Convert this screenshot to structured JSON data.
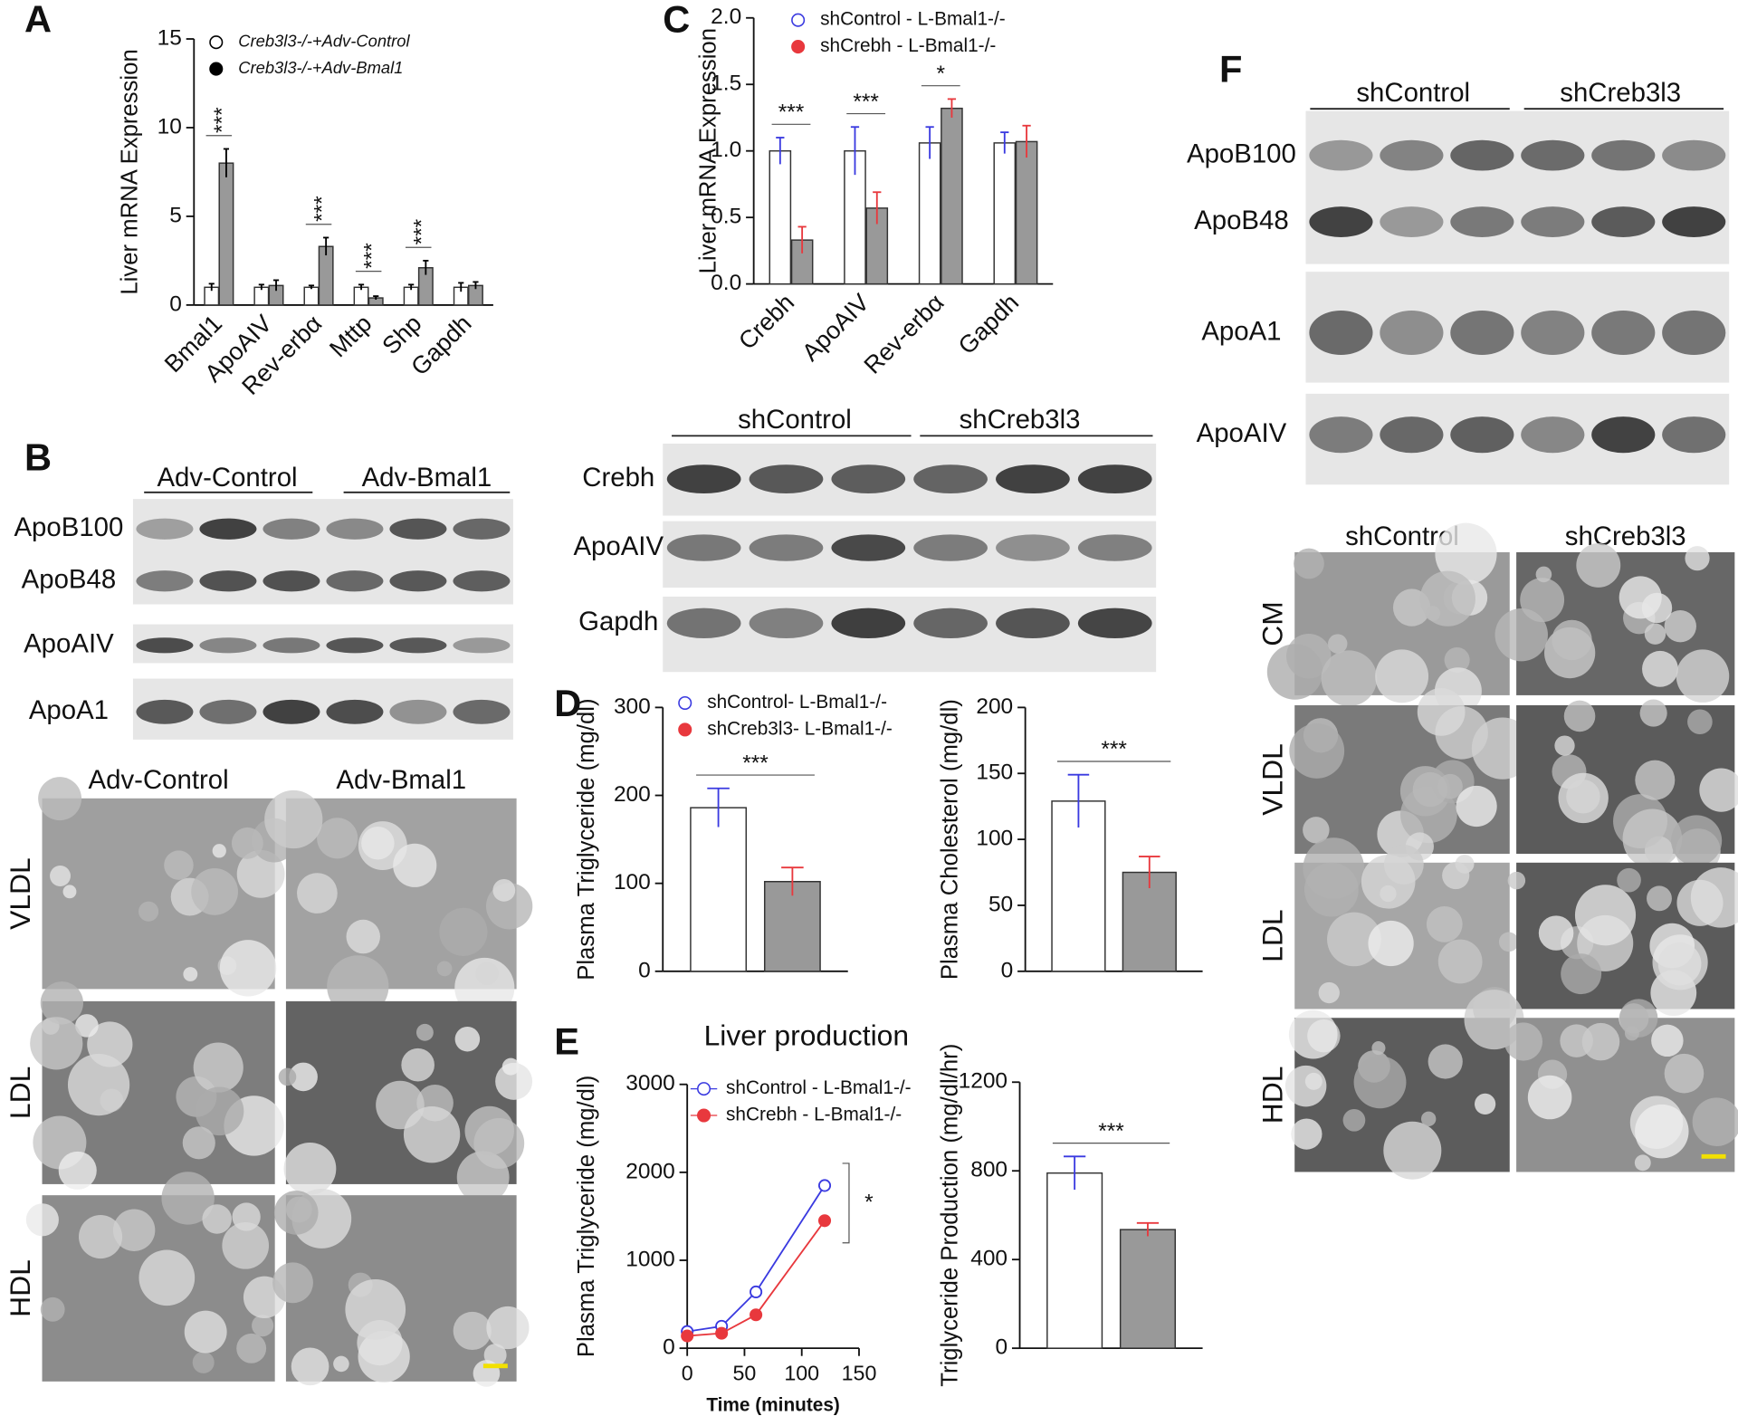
{
  "chart_data": [
    {
      "type": "bar",
      "ylabel": "Liver mRNA Expression",
      "categories": [
        "Bmal1",
        "ApoAIV",
        "Rev-erbα",
        "Mttp",
        "Shp",
        "Gapdh"
      ],
      "series": [
        {
          "name": "Creb3l3-/-+Adv-Control",
          "color": "#ffffff",
          "marker_color": "#000000",
          "marker_filled": false,
          "values": [
            1,
            1,
            1,
            1,
            1,
            1
          ],
          "errors": [
            0.2,
            0.15,
            0.1,
            0.15,
            0.15,
            0.25
          ]
        },
        {
          "name": "Creb3l3-/-+Adv-Bmal1",
          "color": "#999999",
          "marker_color": "#000000",
          "marker_filled": true,
          "values": [
            8.0,
            1.1,
            3.3,
            0.4,
            2.1,
            1.1
          ],
          "errors": [
            0.8,
            0.3,
            0.5,
            0.1,
            0.4,
            0.2
          ]
        }
      ],
      "ylim": [
        0,
        15
      ],
      "yticks": [
        0,
        5,
        10,
        15
      ],
      "annotations": [
        {
          "label": "***",
          "category": "Bmal1"
        },
        {
          "label": "***",
          "category": "Rev-erbα"
        },
        {
          "label": "***",
          "category": "Mttp"
        },
        {
          "label": "***",
          "category": "Shp"
        }
      ]
    },
    {
      "type": "bar",
      "ylabel": "Liver mRNA Expression",
      "categories": [
        "Crebh",
        "ApoAIV",
        "Rev-erbα",
        "Gapdh"
      ],
      "series": [
        {
          "name": "shControl - L-Bmal1-/-",
          "color": "#ffffff",
          "marker_color": "#3a3ae0",
          "marker_filled": false,
          "values": [
            1.0,
            1.0,
            1.06,
            1.06
          ],
          "errors": [
            0.1,
            0.18,
            0.12,
            0.08
          ]
        },
        {
          "name": "shCrebh - L-Bmal1-/-",
          "color": "#999999",
          "marker_color": "#e8383d",
          "marker_filled": true,
          "values": [
            0.33,
            0.57,
            1.32,
            1.07
          ],
          "errors": [
            0.1,
            0.12,
            0.07,
            0.12
          ]
        }
      ],
      "ylim": [
        0,
        2
      ],
      "yticks": [
        {
          "value": 0,
          "label": "0.0"
        },
        0.5,
        {
          "value": 1,
          "label": "1.0"
        },
        1.5,
        {
          "value": 2,
          "label": "2.0"
        }
      ],
      "annotations": [
        {
          "label": "***",
          "category": "Crebh"
        },
        {
          "label": "***",
          "category": "ApoAIV"
        },
        {
          "label": "*",
          "category": "Rev-erbα"
        }
      ]
    },
    {
      "type": "bar",
      "ylabel": "Plasma Triglyceride (mg/dl)",
      "categories": [
        null
      ],
      "series": [
        {
          "name": "shControl- L-Bmal1-/-",
          "color": "#ffffff",
          "marker_color": "#3a3ae0",
          "marker_filled": false,
          "values": [
            186
          ],
          "errors": [
            22
          ]
        },
        {
          "name": "shCreb3l3- L-Bmal1-/-",
          "color": "#999999",
          "marker_color": "#e8383d",
          "marker_filled": true,
          "values": [
            102
          ],
          "errors": [
            16
          ]
        }
      ],
      "ylim": [
        0,
        300
      ],
      "yticks": [
        0,
        100,
        200,
        300
      ],
      "annotations": [
        {
          "label": "***"
        }
      ]
    },
    {
      "type": "bar",
      "ylabel": "Plasma Cholesterol (mg/dl)",
      "categories": [
        null
      ],
      "series": [
        {
          "color": "#ffffff",
          "marker_color": "#3a3ae0",
          "values": [
            129
          ],
          "errors": [
            20
          ]
        },
        {
          "color": "#999999",
          "marker_color": "#e8383d",
          "values": [
            75
          ],
          "errors": [
            12
          ]
        }
      ],
      "ylim": [
        0,
        200
      ],
      "yticks": [
        0,
        50,
        100,
        150,
        200
      ],
      "annotations": [
        {
          "label": "***"
        }
      ]
    },
    {
      "type": "line",
      "title": "Liver production",
      "xlabel": "Time (minutes)",
      "ylabel": "Plasma Triglyceride (mg/dl)",
      "x": [
        0,
        30,
        60,
        120
      ],
      "series": [
        {
          "name": "shControl - L-Bmal1-/-",
          "color": "#3a3ae0",
          "marker_filled": false,
          "values": [
            190,
            250,
            640,
            1850
          ]
        },
        {
          "name": "shCrebh - L-Bmal1-/-",
          "color": "#e8383d",
          "marker_filled": true,
          "values": [
            140,
            170,
            380,
            1450
          ]
        }
      ],
      "xlim": [
        0,
        150
      ],
      "xticks": [
        0,
        50,
        100,
        150
      ],
      "ylim": [
        0,
        3000
      ],
      "yticks": [
        0,
        1000,
        2000,
        3000
      ],
      "annotations": [
        {
          "label": "*"
        }
      ]
    },
    {
      "type": "bar",
      "ylabel": "Triglyceride Production (mg/dl/hr)",
      "categories": [
        null
      ],
      "series": [
        {
          "color": "#ffffff",
          "marker_color": "#3a3ae0",
          "values": [
            790
          ],
          "errors": [
            75
          ]
        },
        {
          "color": "#999999",
          "marker_color": "#e8383d",
          "values": [
            535
          ],
          "errors": [
            30
          ]
        }
      ],
      "ylim": [
        0,
        1200
      ],
      "yticks": [
        0,
        400,
        800,
        1200
      ],
      "annotations": [
        {
          "label": "***"
        }
      ]
    }
  ],
  "figure": {
    "panels": [
      "A",
      "B",
      "C",
      "D",
      "E",
      "F"
    ],
    "blots": [
      {
        "headers": [
          "Adv-Control",
          "Adv-Bmal1"
        ],
        "rows": [
          "ApoB100",
          "ApoB48",
          "ApoAIV",
          "ApoA1"
        ]
      },
      {
        "headers": [
          "shControl",
          "shCreb3l3"
        ],
        "rows": [
          "Crebh",
          "ApoAIV",
          "Gapdh"
        ]
      },
      {
        "headers": [
          "shControl",
          "shCreb3l3"
        ],
        "rows": [
          "ApoB100",
          "ApoB48",
          "ApoA1",
          "ApoAIV"
        ]
      }
    ],
    "micrographs": [
      {
        "headers": [
          "Adv-Control",
          "Adv-Bmal1"
        ],
        "rows": [
          "VLDL",
          "LDL",
          "HDL"
        ]
      },
      {
        "headers": [
          "shControl",
          "shCreb3l3"
        ],
        "rows": [
          "CM",
          "VLDL",
          "LDL",
          "HDL"
        ]
      }
    ]
  }
}
